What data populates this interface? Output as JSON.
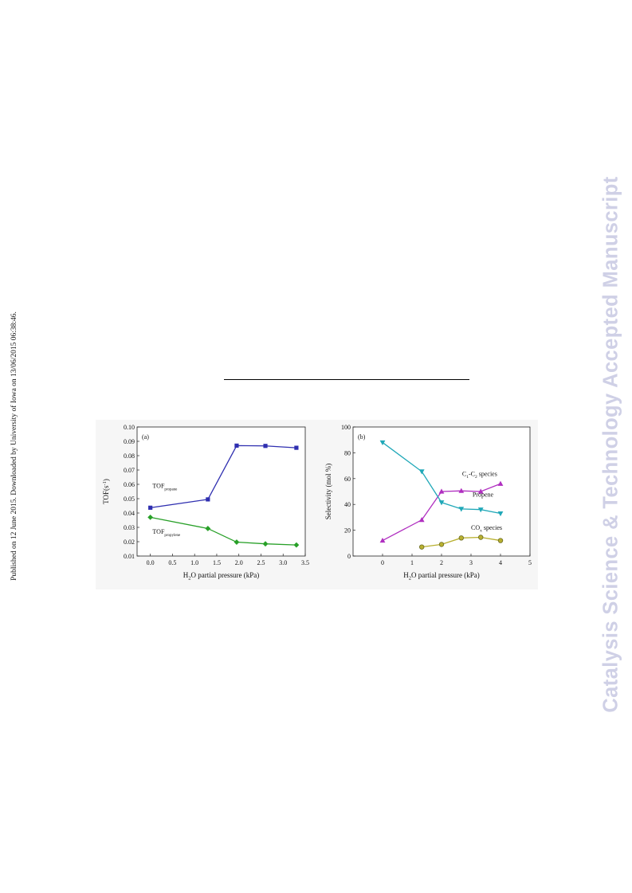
{
  "side_note": "Published on 12 June 2015. Downloaded by University of Iowa on 13/06/2015 06:38:46.",
  "watermark": "Catalysis Science & Technology Accepted Manuscript",
  "colors": {
    "propane": "#2f2fb0",
    "propylene": "#28a028",
    "c1c2": "#b02fc0",
    "propene": "#20a8b8",
    "cox": "#b8b030"
  },
  "chart_data": [
    {
      "type": "line",
      "panel_label": "(a)",
      "xlabel": "H2O partial pressure (kPa)",
      "ylabel": "TOF(s-1)",
      "xlim": [
        -0.3,
        3.5
      ],
      "ylim": [
        0.01,
        0.1
      ],
      "xticks": [
        "0.0",
        "0.5",
        "1.0",
        "1.5",
        "2.0",
        "2.5",
        "3.0",
        "3.5"
      ],
      "yticks": [
        "0.01",
        "0.02",
        "0.03",
        "0.04",
        "0.05",
        "0.06",
        "0.07",
        "0.08",
        "0.09",
        "0.10"
      ],
      "series": [
        {
          "name": "TOFpropane",
          "marker": "square",
          "x": [
            0.0,
            1.3,
            1.95,
            2.6,
            3.3
          ],
          "y": [
            0.0437,
            0.0495,
            0.087,
            0.0868,
            0.0855
          ]
        },
        {
          "name": "TOFpropylene",
          "marker": "diamond",
          "x": [
            0.0,
            1.3,
            1.95,
            2.6,
            3.3
          ],
          "y": [
            0.037,
            0.0292,
            0.0197,
            0.0185,
            0.0177
          ]
        }
      ],
      "annotations": [
        {
          "text": "TOF",
          "sub": "propane"
        },
        {
          "text": "TOF",
          "sub": "propylene"
        }
      ],
      "grid": false
    },
    {
      "type": "line",
      "panel_label": "(b)",
      "xlabel": "H2O partial pressure (kPa)",
      "ylabel": "Selectivity (mol %)",
      "xlim": [
        -1,
        5
      ],
      "ylim": [
        0,
        100
      ],
      "xticks": [
        "0",
        "1",
        "2",
        "3",
        "4",
        "5"
      ],
      "yticks": [
        "0",
        "20",
        "40",
        "60",
        "80",
        "100"
      ],
      "series": [
        {
          "name": "C1-C2 species",
          "marker": "triangle-up",
          "x": [
            0,
            1.33,
            2.0,
            2.67,
            3.33,
            4.0
          ],
          "y": [
            12,
            28,
            50,
            50.5,
            50,
            56
          ]
        },
        {
          "name": "Propene",
          "marker": "triangle-down",
          "x": [
            0,
            1.33,
            2.0,
            2.67,
            3.33,
            4.0
          ],
          "y": [
            88,
            65.5,
            41.5,
            36.5,
            36,
            33
          ]
        },
        {
          "name": "COx species",
          "marker": "circle",
          "x": [
            1.33,
            2.0,
            2.67,
            3.33,
            4.0
          ],
          "y": [
            7,
            9,
            14,
            14.5,
            12
          ]
        }
      ],
      "annotations": [
        {
          "text": "C1-C2 species"
        },
        {
          "text": "Propene"
        },
        {
          "text": "COx species"
        }
      ],
      "grid": false
    }
  ]
}
